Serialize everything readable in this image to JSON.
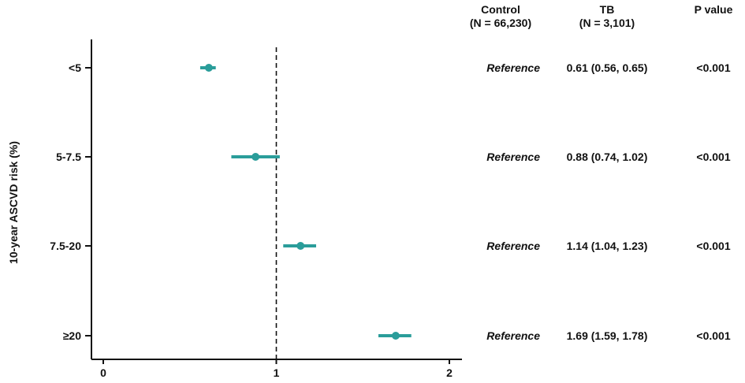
{
  "chart_data": {
    "type": "forest",
    "ylabel": "10-year ASCVD risk (%)",
    "xlim": [
      0,
      2
    ],
    "xticks": [
      "0",
      "1",
      "2"
    ],
    "reference_line": 1,
    "marker_color": "#2a9d9a",
    "columns": {
      "control": {
        "title": "Control",
        "subtitle": "(N = 66,230)"
      },
      "tb": {
        "title": "TB",
        "subtitle": "(N = 3,101)"
      },
      "p": {
        "title": "P value"
      }
    },
    "rows": [
      {
        "label": "<5",
        "control": "Reference",
        "estimate": 0.61,
        "lower": 0.56,
        "upper": 0.65,
        "tb_text": "0.61 (0.56, 0.65)",
        "p": "<0.001"
      },
      {
        "label": "5-7.5",
        "control": "Reference",
        "estimate": 0.88,
        "lower": 0.74,
        "upper": 1.02,
        "tb_text": "0.88 (0.74, 1.02)",
        "p": "<0.001"
      },
      {
        "label": "7.5-20",
        "control": "Reference",
        "estimate": 1.14,
        "lower": 1.04,
        "upper": 1.23,
        "tb_text": "1.14 (1.04, 1.23)",
        "p": "<0.001"
      },
      {
        "label": "≥20",
        "control": "Reference",
        "estimate": 1.69,
        "lower": 1.59,
        "upper": 1.78,
        "tb_text": "1.69 (1.59, 1.78)",
        "p": "<0.001"
      }
    ]
  }
}
